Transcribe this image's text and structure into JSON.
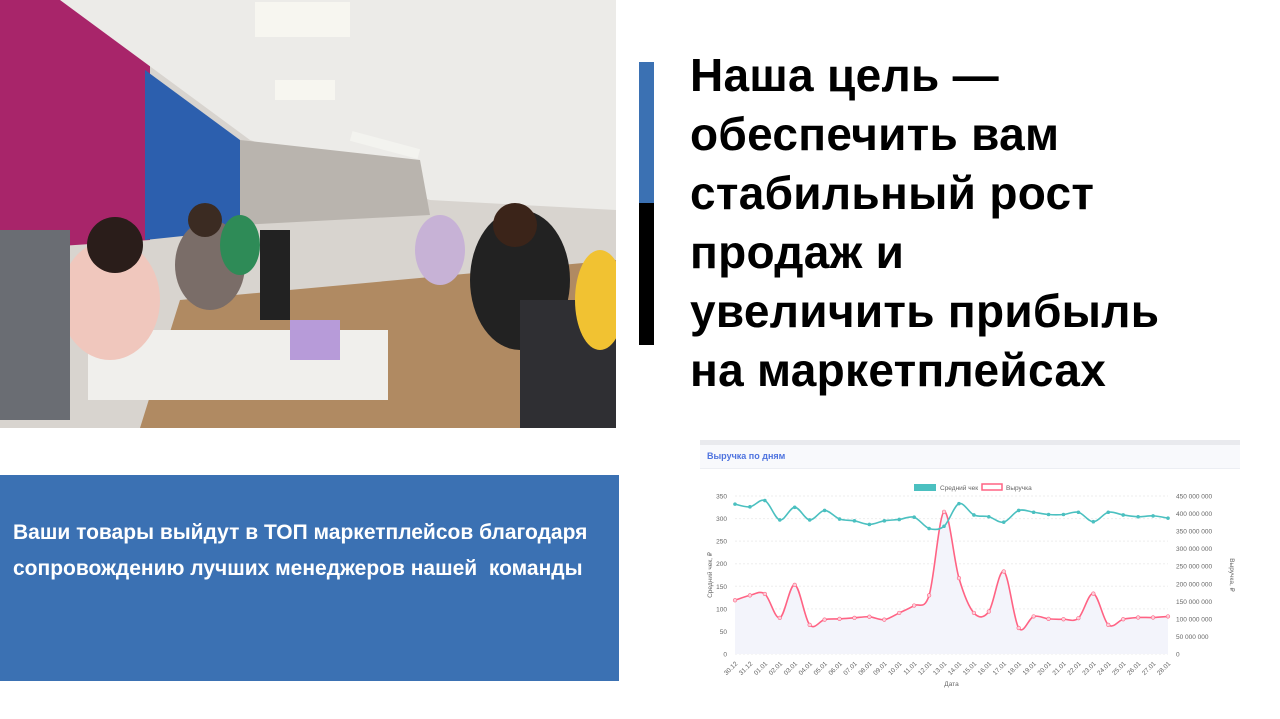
{
  "title": "Наша цель — обеспечить вам стабильный рост продаж и увеличить прибыль на маркетплейсах",
  "title_lines": [
    "Наша цель —",
    "обеспечить вам",
    "стабильный рост",
    "продаж и",
    "увеличить прибыль",
    "на маркетплейсах"
  ],
  "promo_text": "Ваши товары выйдут в ТОП маркетплейсов благодаря сопровождению лучших менеджеров нашей  команды",
  "colors": {
    "accent_blue": "#3b71b3",
    "accent_black": "#000000",
    "series_avg": "#4bc0c0",
    "series_revenue": "#ff6384",
    "chart_title": "#4e73df"
  },
  "photo": {
    "description_icon": "office-photo"
  },
  "chart_data": {
    "type": "line",
    "title": "Выручка по дням",
    "xlabel": "Дата",
    "ylabel_left": "Средний чек, ₽",
    "ylabel_right": "Выручка, ₽",
    "legend_position": "top",
    "grid": true,
    "categories": [
      "30.12",
      "31.12",
      "01.01",
      "02.01",
      "03.01",
      "04.01",
      "05.01",
      "06.01",
      "07.01",
      "08.01",
      "09.01",
      "10.01",
      "11.01",
      "12.01",
      "13.01",
      "14.01",
      "15.01",
      "16.01",
      "17.01",
      "18.01",
      "19.01",
      "20.01",
      "21.01",
      "22.01",
      "23.01",
      "24.01",
      "25.01",
      "26.01",
      "27.01",
      "28.01"
    ],
    "y_left": {
      "range": [
        0,
        350
      ],
      "ticks": [
        "0",
        "50",
        "100",
        "150",
        "200",
        "250",
        "300",
        "350"
      ]
    },
    "y_right": {
      "range": [
        0,
        450000000
      ],
      "ticks": [
        "0",
        "50 000 000",
        "100 000 000",
        "150 000 000",
        "200 000 000",
        "250 000 000",
        "300 000 000",
        "350 000 000",
        "400 000 000",
        "450 000 000"
      ]
    },
    "series": [
      {
        "name": "Средний чек",
        "axis": "left",
        "values": [
          332,
          326,
          340,
          297,
          325,
          297,
          318,
          299,
          295,
          287,
          295,
          298,
          303,
          278,
          283,
          333,
          308,
          304,
          292,
          318,
          314,
          309,
          309,
          314,
          293,
          314,
          308,
          304,
          306,
          301
        ]
      },
      {
        "name": "Выручка",
        "axis": "right",
        "fill": true,
        "values": [
          153000000,
          167000000,
          171000000,
          103000000,
          197000000,
          83000000,
          98000000,
          100000000,
          103000000,
          106000000,
          98000000,
          117000000,
          138000000,
          167000000,
          405000000,
          216000000,
          117000000,
          121000000,
          235000000,
          74000000,
          107000000,
          100000000,
          99000000,
          102000000,
          172000000,
          83000000,
          99000000,
          104000000,
          104000000,
          107000000
        ]
      }
    ]
  }
}
